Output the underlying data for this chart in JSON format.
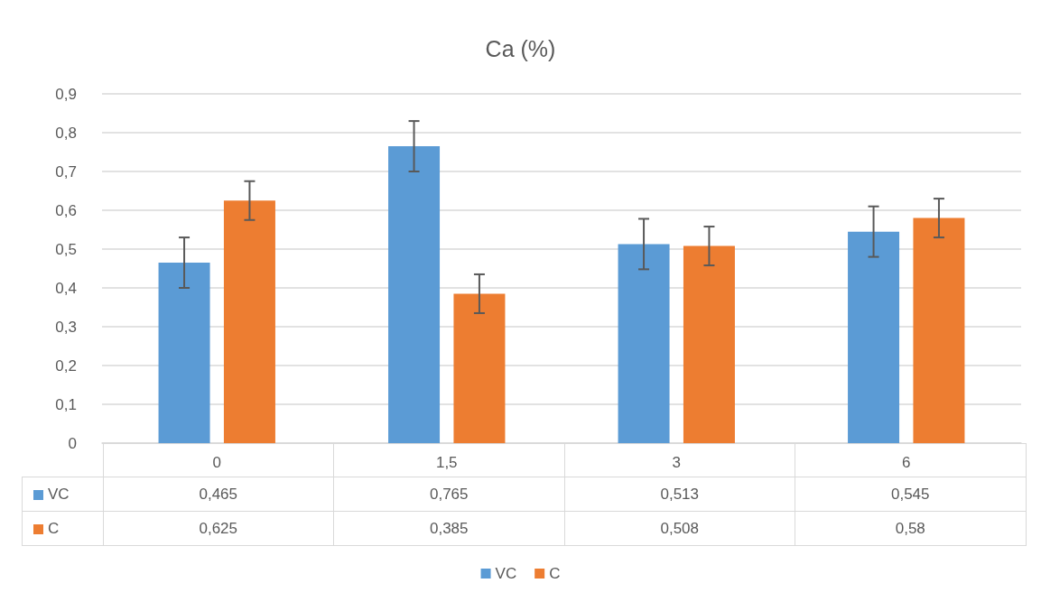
{
  "chart_data": {
    "type": "bar",
    "title": "Ca (%)",
    "categories": [
      "0",
      "1,5",
      "3",
      "6"
    ],
    "series": [
      {
        "name": "VC",
        "color": "#5b9bd5",
        "values": [
          0.465,
          0.765,
          0.513,
          0.545
        ],
        "value_labels": [
          "0,465",
          "0,765",
          "0,513",
          "0,545"
        ],
        "errors": [
          0.065,
          0.065,
          0.065,
          0.065
        ]
      },
      {
        "name": "C",
        "color": "#ed7d31",
        "values": [
          0.625,
          0.385,
          0.508,
          0.58
        ],
        "value_labels": [
          "0,625",
          "0,385",
          "0,508",
          "0,58"
        ],
        "errors": [
          0.05,
          0.05,
          0.05,
          0.05
        ]
      }
    ],
    "ylim": [
      0,
      0.9
    ],
    "yticks": [
      0,
      {
        "value": 0.1,
        "label": "0,1"
      },
      {
        "value": 0.2,
        "label": "0,2"
      },
      {
        "value": 0.3,
        "label": "0,3"
      },
      {
        "value": 0.4,
        "label": "0,4"
      },
      {
        "value": 0.5,
        "label": "0,5"
      },
      {
        "value": 0.6,
        "label": "0,6"
      },
      {
        "value": 0.7,
        "label": "0,7"
      },
      {
        "value": 0.8,
        "label": "0,8"
      },
      {
        "value": 0.9,
        "label": "0,9"
      }
    ],
    "grid": "y",
    "legend": "bottom"
  }
}
